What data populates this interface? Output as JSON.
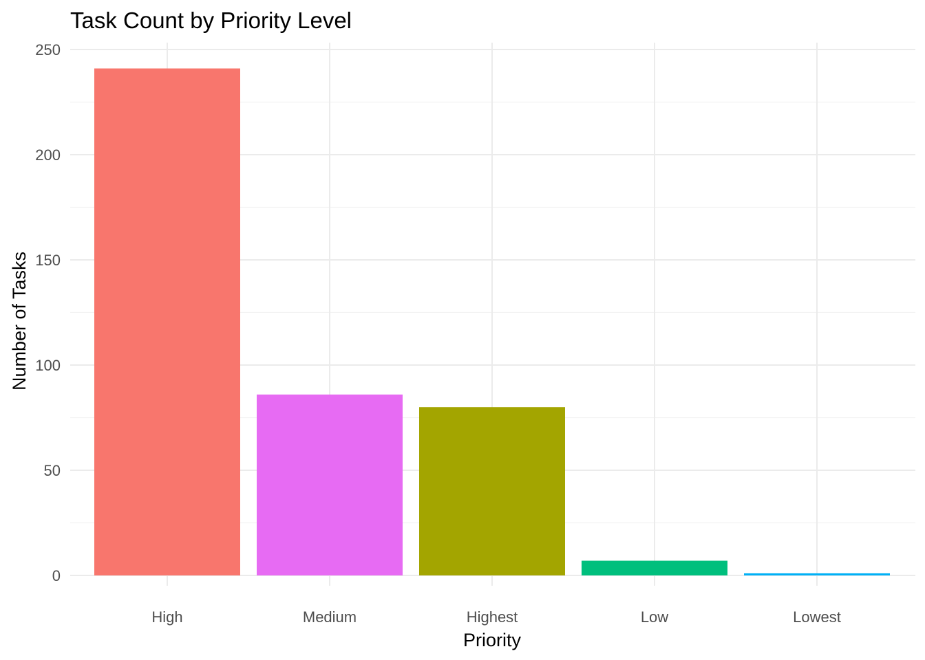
{
  "chart_data": {
    "type": "bar",
    "title": "Task Count by Priority Level",
    "xlabel": "Priority",
    "ylabel": "Number of Tasks",
    "categories": [
      "High",
      "Medium",
      "Highest",
      "Low",
      "Lowest"
    ],
    "values": [
      241,
      86,
      80,
      7,
      1
    ],
    "colors": [
      "#F8766D",
      "#E76BF3",
      "#A3A500",
      "#00BF7D",
      "#00B0F6"
    ],
    "ylim": [
      0,
      250
    ],
    "yticks": [
      0,
      50,
      100,
      150,
      200,
      250
    ],
    "grid": true,
    "legend": "none"
  }
}
